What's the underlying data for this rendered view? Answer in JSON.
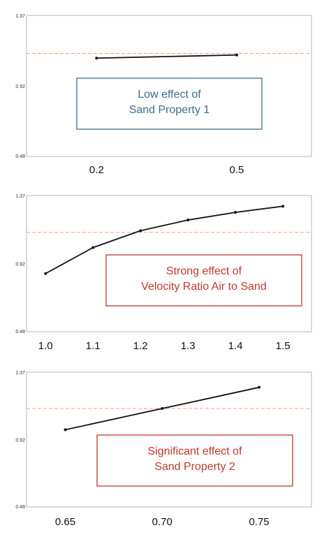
{
  "chart_data": [
    {
      "type": "line",
      "x": [
        0.2,
        0.5
      ],
      "series": [
        {
          "values": [
            1.1,
            1.12
          ]
        }
      ],
      "x_tick_labels": [
        "0.2",
        "0.5"
      ],
      "xlim": [
        0.05,
        0.66
      ],
      "ylim": [
        0.48,
        1.37
      ],
      "y_tick_labels": [
        "1.37",
        "0.92",
        "0.48"
      ],
      "reference_line": 1.13,
      "annotation": [
        "Low effect of",
        "Sand Property 1"
      ],
      "annotation_color": "#3b6e91",
      "grid": false
    },
    {
      "type": "line",
      "x": [
        1.0,
        1.1,
        1.2,
        1.3,
        1.4,
        1.5
      ],
      "series": [
        {
          "values": [
            0.86,
            1.03,
            1.14,
            1.21,
            1.26,
            1.3
          ]
        }
      ],
      "x_tick_labels": [
        "1.0",
        "1.1",
        "1.2",
        "1.3",
        "1.4",
        "1.5"
      ],
      "xlim": [
        0.96,
        1.56
      ],
      "ylim": [
        0.48,
        1.37
      ],
      "y_tick_labels": [
        "1.37",
        "0.92",
        "0.48"
      ],
      "reference_line": 1.13,
      "annotation": [
        "Strong effect of",
        "Velocity Ratio Air to Sand"
      ],
      "annotation_color": "#c0392b",
      "grid": false
    },
    {
      "type": "line",
      "x": [
        0.65,
        0.7,
        0.75
      ],
      "series": [
        {
          "values": [
            0.99,
            1.13,
            1.27
          ]
        }
      ],
      "x_tick_labels": [
        "0.65",
        "0.70",
        "0.75"
      ],
      "xlim": [
        0.63,
        0.777
      ],
      "ylim": [
        0.48,
        1.37
      ],
      "y_tick_labels": [
        "1.37",
        "0.92",
        "0.48"
      ],
      "reference_line": 1.13,
      "annotation": [
        "Significant effect of",
        "Sand Property 2"
      ],
      "annotation_color": "#c0392b",
      "grid": false
    }
  ]
}
